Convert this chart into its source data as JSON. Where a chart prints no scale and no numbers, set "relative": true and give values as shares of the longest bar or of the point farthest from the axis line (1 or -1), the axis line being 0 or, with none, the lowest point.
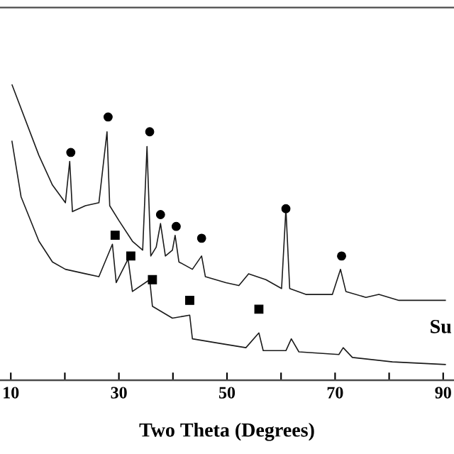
{
  "chart_data": {
    "type": "line",
    "relative": true,
    "xlabel": "Two Theta (Degrees)",
    "xlim": [
      8,
      92
    ],
    "xticks": [
      10,
      {
        "value": 20,
        "label": null
      },
      30,
      {
        "value": 40,
        "label": null
      },
      50,
      {
        "value": 60,
        "label": null
      },
      70,
      {
        "value": 80,
        "label": null
      },
      90
    ],
    "annotations": [
      "Su"
    ],
    "series": [
      {
        "color": "#1a1a1a",
        "marker": "none",
        "x": [
          10.2,
          15.2,
          17.7,
          20.1,
          20.9,
          21.4,
          23.8,
          26.3,
          27.8,
          28.3,
          30,
          32.5,
          34.4,
          35.2,
          35.9,
          36.9,
          37.7,
          38.6,
          39.9,
          40.4,
          41.1,
          43.6,
          45.3,
          46,
          49.8,
          52.2,
          54,
          57.2,
          60.1,
          60.9,
          61.6,
          64.6,
          69.5,
          71,
          72,
          75.7,
          78.1,
          81.8,
          85.6,
          90.5
        ],
        "values": [
          1.0,
          0.76,
          0.66,
          0.6,
          0.74,
          0.57,
          0.59,
          0.6,
          0.84,
          0.59,
          0.54,
          0.47,
          0.44,
          0.79,
          0.42,
          0.45,
          0.53,
          0.42,
          0.44,
          0.49,
          0.4,
          0.375,
          0.42,
          0.35,
          0.33,
          0.32,
          0.36,
          0.34,
          0.31,
          0.58,
          0.31,
          0.29,
          0.29,
          0.375,
          0.3,
          0.28,
          0.29,
          0.27,
          0.27,
          0.27
        ]
      },
      {
        "color": "#1a1a1a",
        "marker": "none",
        "x": [
          10.2,
          11.9,
          15.2,
          17.7,
          20.1,
          23.8,
          26.3,
          28.8,
          29.5,
          31.7,
          32.5,
          35.7,
          36.2,
          39.9,
          43.1,
          43.6,
          48.5,
          53.5,
          55.9,
          56.7,
          60.9,
          61.9,
          63.3,
          70.7,
          71.5,
          73.2,
          80.6,
          90.5
        ],
        "values": [
          0.81,
          0.62,
          0.47,
          0.4,
          0.375,
          0.36,
          0.35,
          0.46,
          0.33,
          0.41,
          0.3,
          0.34,
          0.25,
          0.21,
          0.22,
          0.14,
          0.125,
          0.11,
          0.16,
          0.1,
          0.1,
          0.14,
          0.096,
          0.087,
          0.11,
          0.077,
          0.062,
          0.053
        ]
      },
      {
        "type": "scatter",
        "color": "#000000",
        "marker": "circle",
        "x": [
          21.1,
          28.0,
          35.7,
          37.7,
          40.6,
          45.3,
          60.9,
          71.2
        ],
        "values": [
          0.77,
          0.89,
          0.84,
          0.56,
          0.52,
          0.48,
          0.58,
          0.42
        ]
      },
      {
        "type": "scatter",
        "color": "#000000",
        "marker": "square",
        "x": [
          29.3,
          32.2,
          36.2,
          43.1,
          55.9
        ],
        "values": [
          0.49,
          0.42,
          0.34,
          0.27,
          0.24
        ]
      }
    ]
  }
}
